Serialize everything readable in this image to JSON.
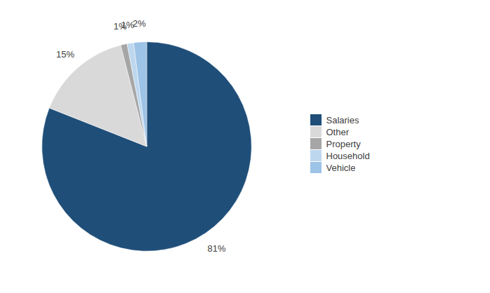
{
  "chart_data": {
    "type": "pie",
    "categories": [
      "Salaries",
      "Other",
      "Property",
      "Household",
      "Vehicle"
    ],
    "values": [
      81,
      15,
      1,
      1,
      2
    ],
    "value_labels": [
      "81%",
      "15%",
      "1%",
      "1%",
      "2%"
    ],
    "colors": [
      "#1F4E79",
      "#D9D9D9",
      "#A6A6A6",
      "#BDD7EE",
      "#9DC3E6"
    ],
    "data_labels": true,
    "legend": "right"
  }
}
